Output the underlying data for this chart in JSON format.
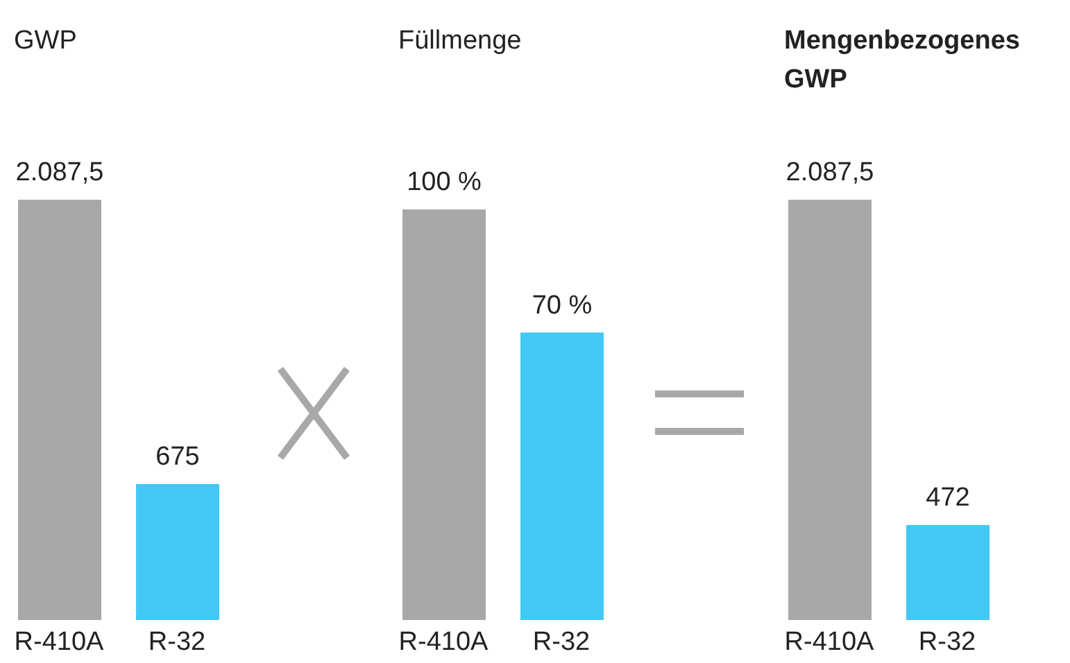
{
  "chart_data": [
    {
      "type": "bar",
      "title": "GWP",
      "categories": [
        "R-410A",
        "R-32"
      ],
      "values": [
        2087.5,
        675
      ],
      "colors": [
        "#a7a8aa",
        "#42c8f4"
      ],
      "value_labels": [
        "2.087,5",
        "675"
      ]
    },
    {
      "type": "bar",
      "title": "Füllmenge",
      "categories": [
        "R-410A",
        "R-32"
      ],
      "values": [
        100,
        70
      ],
      "colors": [
        "#a7a8aa",
        "#42c8f4"
      ],
      "value_labels": [
        "100 %",
        "70 %"
      ]
    },
    {
      "type": "bar",
      "title": "Mengenbezogenes GWP",
      "categories": [
        "R-410A",
        "R-32"
      ],
      "values": [
        2087.5,
        472
      ],
      "colors": [
        "#a7a8aa",
        "#42c8f4"
      ],
      "value_labels": [
        "2.087,5",
        "472"
      ]
    }
  ]
}
